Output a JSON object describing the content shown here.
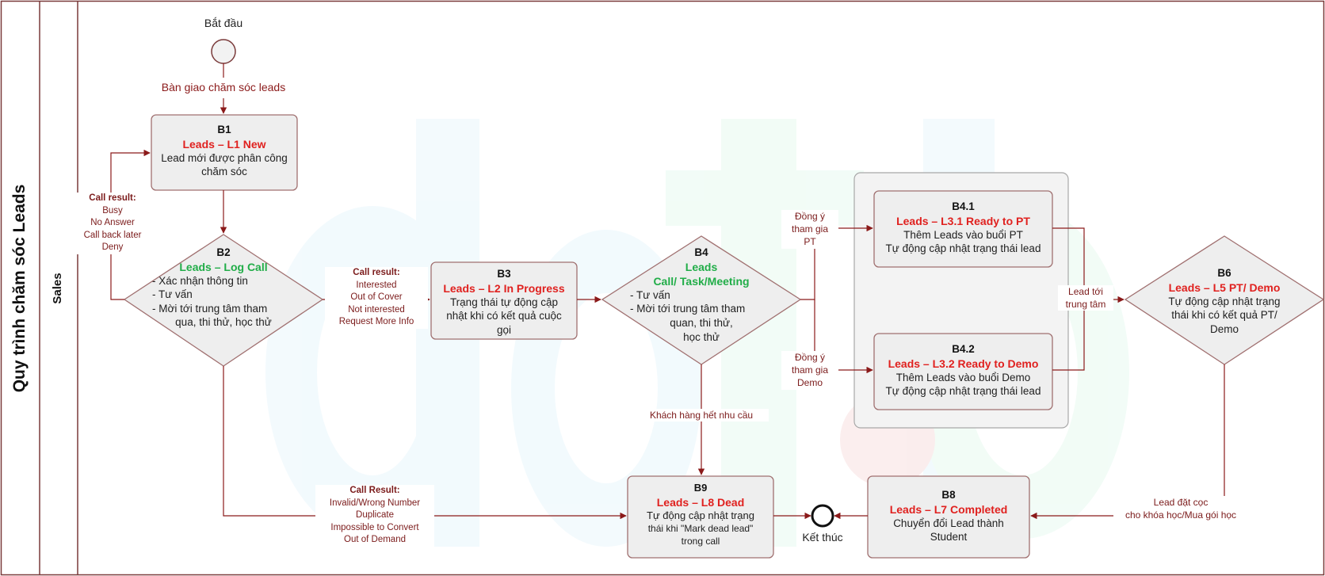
{
  "pool_title": "Quy trình chăm sóc Leads",
  "lane_title": "Sales",
  "start_label": "Bắt đầu",
  "end_label": "Kết thúc",
  "start_edge_label": "Bàn giao chăm sóc leads",
  "nodes": {
    "b1": {
      "id": "B1",
      "status": "Leads – L1 New",
      "lines": [
        "Lead mới được phân công",
        "chăm sóc"
      ]
    },
    "b2": {
      "id": "B2",
      "status": "Leads – Log Call",
      "lines": [
        "- Xác nhận thông tin",
        "- Tư vấn",
        "- Mời tới trung tâm tham",
        "qua, thi thử, học thử"
      ]
    },
    "b3": {
      "id": "B3",
      "status": "Leads – L2 In Progress",
      "lines": [
        "Trạng thái tự động cập",
        "nhật khi có kết quả cuộc",
        "gọi"
      ]
    },
    "b4": {
      "id": "B4",
      "status": "Leads",
      "status2": "Call/ Task/Meeting",
      "lines": [
        "- Tư vấn",
        "- Mời tới trung tâm tham",
        "quan, thi thử,",
        "học thử"
      ]
    },
    "b41": {
      "id": "B4.1",
      "status": "Leads – L3.1 Ready to PT",
      "lines": [
        "Thêm Leads vào buổi PT",
        "Tự động cập nhật trạng thái lead"
      ]
    },
    "b42": {
      "id": "B4.2",
      "status": "Leads – L3.2 Ready to Demo",
      "lines": [
        "Thêm Leads vào buổi Demo",
        "Tự động cập nhật trạng thái lead"
      ]
    },
    "b6": {
      "id": "B6",
      "status": "Leads – L5 PT/ Demo",
      "lines": [
        "Tự động cập nhật trạng",
        "thái khi có kết quả PT/",
        "Demo"
      ]
    },
    "b8": {
      "id": "B8",
      "status": "Leads – L7 Completed",
      "lines": [
        "Chuyển đổi Lead thành",
        "Student"
      ]
    },
    "b9": {
      "id": "B9",
      "status": "Leads – L8 Dead",
      "lines": [
        "Tự động cập nhật trạng",
        "thái khi \"Mark dead lead\"",
        "trong call"
      ]
    }
  },
  "edge_labels": {
    "loop_back": {
      "title": "Call result:",
      "lines": [
        "Busy",
        "No Answer",
        "Call back later",
        "Deny"
      ]
    },
    "b2_to_b3": {
      "title": "Call result:",
      "lines": [
        "Interested",
        "Out of Cover",
        "Not interested",
        "Request More Info"
      ]
    },
    "b2_to_b9": {
      "title": "Call Result:",
      "lines": [
        "Invalid/Wrong Number",
        "Duplicate",
        "Impossible to Convert",
        "Out of Demand"
      ]
    },
    "b4_to_b41": [
      "Đồng ý",
      "tham gia",
      "PT"
    ],
    "b4_to_b42": [
      "Đồng ý",
      "tham gia",
      "Demo"
    ],
    "to_b6": [
      "Lead tới",
      "trung tâm"
    ],
    "b4_to_b9": "Khách hàng hết nhu cầu",
    "b6_to_b8": [
      "Lead đặt cọc",
      "cho khóa học/Mua gói học"
    ]
  },
  "watermark_text": "dot",
  "colors": {
    "arrow": "#8b1a1a",
    "node_fill": "#eeeeee",
    "node_border": "#a07070",
    "status_red": "#e0211f",
    "status_green": "#21ad48",
    "pool_border": "#7a3a3a"
  }
}
